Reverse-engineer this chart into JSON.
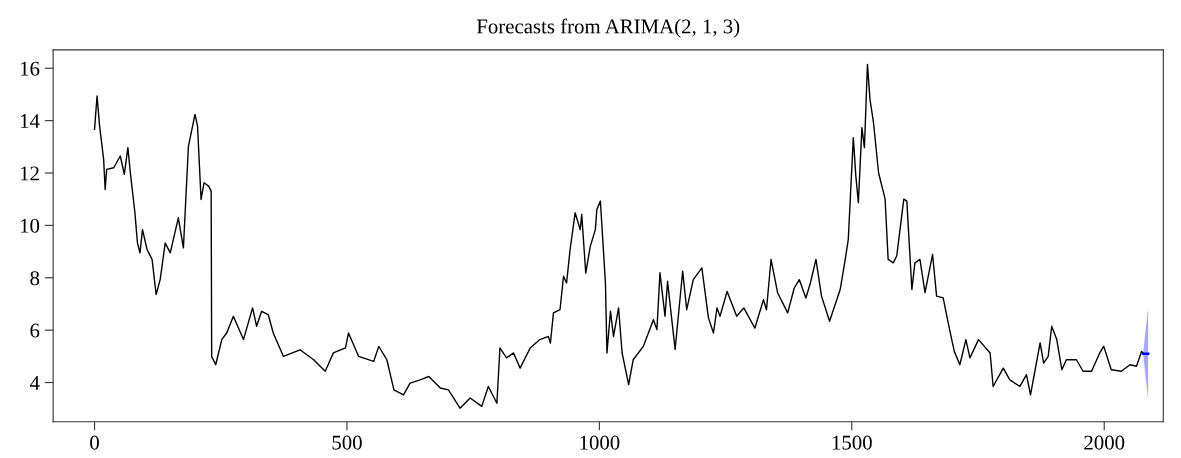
{
  "chart_data": {
    "type": "line",
    "title": "Forecasts from ARIMA(2, 1, 3)",
    "xlim": [
      -82,
      2117
    ],
    "ylim": [
      2.5,
      16.7
    ],
    "xticks": [
      0,
      500,
      1000,
      1500,
      2000
    ],
    "yticks": [
      4,
      6,
      8,
      10,
      12,
      14,
      16
    ],
    "marker": "none",
    "line_style": "solid",
    "series": [
      {
        "color": "#000000",
        "x": [
          0,
          5,
          10,
          18,
          21,
          24,
          38,
          51,
          59,
          66,
          71,
          80,
          85,
          90,
          95,
          104,
          114,
          122,
          130,
          140,
          150,
          156,
          166,
          176,
          186,
          199,
          204,
          211,
          217,
          226,
          231,
          232,
          240,
          252,
          262,
          275,
          295,
          313,
          321,
          331,
          344,
          354,
          374,
          407,
          434,
          457,
          473,
          497,
          503,
          523,
          553,
          563,
          579,
          593,
          612,
          625,
          645,
          662,
          685,
          701,
          724,
          744,
          767,
          780,
          797,
          803,
          816,
          830,
          843,
          863,
          882,
          899,
          903,
          909,
          922,
          929,
          935,
          942,
          952,
          962,
          965,
          973,
          982,
          992,
          995,
          1002,
          1012,
          1015,
          1022,
          1028,
          1038,
          1045,
          1058,
          1067,
          1087,
          1107,
          1114,
          1120,
          1130,
          1135,
          1150,
          1165,
          1173,
          1186,
          1203,
          1216,
          1226,
          1233,
          1239,
          1253,
          1272,
          1286,
          1308,
          1325,
          1331,
          1340,
          1353,
          1373,
          1386,
          1396,
          1409,
          1418,
          1429,
          1440,
          1456,
          1477,
          1487,
          1493,
          1503,
          1508,
          1513,
          1520,
          1525,
          1531,
          1536,
          1543,
          1553,
          1566,
          1572,
          1582,
          1589,
          1603,
          1609,
          1619,
          1625,
          1635,
          1645,
          1660,
          1668,
          1681,
          1691,
          1703,
          1714,
          1726,
          1734,
          1751,
          1774,
          1780,
          1800,
          1813,
          1833,
          1846,
          1854,
          1873,
          1880,
          1889,
          1896,
          1906,
          1916,
          1925,
          1945,
          1958,
          1975,
          1991,
          1999,
          2014,
          2034,
          2051,
          2064,
          2074,
          2077
        ],
        "values": [
          13.67,
          14.94,
          13.8,
          12.52,
          11.37,
          12.14,
          12.2,
          12.65,
          11.95,
          12.97,
          12.0,
          10.48,
          9.33,
          8.95,
          9.84,
          9.08,
          8.7,
          7.36,
          7.93,
          9.33,
          8.95,
          9.46,
          10.29,
          9.14,
          13.03,
          14.24,
          13.8,
          10.99,
          11.63,
          11.5,
          11.31,
          5.0,
          4.68,
          5.64,
          5.9,
          6.53,
          5.64,
          6.85,
          6.15,
          6.72,
          6.59,
          5.89,
          5.0,
          5.25,
          4.87,
          4.43,
          5.13,
          5.32,
          5.89,
          5.0,
          4.81,
          5.38,
          4.87,
          3.72,
          3.53,
          3.98,
          4.1,
          4.23,
          3.79,
          3.72,
          3.02,
          3.41,
          3.09,
          3.85,
          3.21,
          5.32,
          4.94,
          5.13,
          4.55,
          5.32,
          5.64,
          5.76,
          5.51,
          6.66,
          6.78,
          8.06,
          7.8,
          9.08,
          10.48,
          9.84,
          10.42,
          8.18,
          9.2,
          9.84,
          10.61,
          10.93,
          7.8,
          5.13,
          6.72,
          5.76,
          6.85,
          5.13,
          3.92,
          4.87,
          5.38,
          6.4,
          6.02,
          8.19,
          6.53,
          7.87,
          5.26,
          8.25,
          6.78,
          7.93,
          8.38,
          6.47,
          5.89,
          6.85,
          6.53,
          7.48,
          6.53,
          6.85,
          6.08,
          7.16,
          6.78,
          8.7,
          7.43,
          6.66,
          7.61,
          7.93,
          7.23,
          7.8,
          8.7,
          7.3,
          6.34,
          7.55,
          8.7,
          9.46,
          13.35,
          11.89,
          10.87,
          13.73,
          12.97,
          16.15,
          14.81,
          13.92,
          12.01,
          11.0,
          8.7,
          8.57,
          8.83,
          11.0,
          10.93,
          7.55,
          8.57,
          8.7,
          7.43,
          8.89,
          7.3,
          7.23,
          6.27,
          5.19,
          4.68,
          5.64,
          4.94,
          5.64,
          5.13,
          3.85,
          4.55,
          4.1,
          3.85,
          4.3,
          3.53,
          5.51,
          4.74,
          5.0,
          6.15,
          5.64,
          4.49,
          4.87,
          4.87,
          4.43,
          4.43,
          5.13,
          5.38,
          4.49,
          4.43,
          4.68,
          4.62,
          5.19,
          5.13
        ]
      },
      {
        "color": "#0000ff",
        "x": [
          2077,
          2082,
          2087
        ],
        "values": [
          5.1,
          5.1,
          5.1
        ],
        "lower": [
          5.1,
          4.2,
          3.35
        ],
        "upper": [
          5.1,
          6.0,
          6.85
        ]
      }
    ]
  }
}
